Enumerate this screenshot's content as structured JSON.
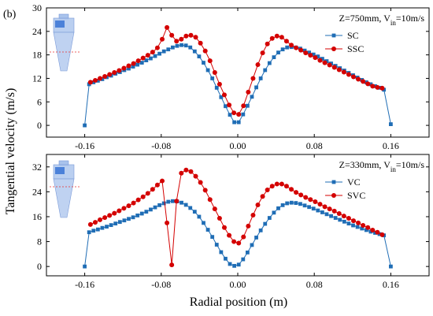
{
  "figure": {
    "panel_label": "(b)",
    "xlabel": "Radial position (m)",
    "ylabel": "Tangential velocity (m/s)"
  },
  "colors": {
    "blue": "#1f6db5",
    "red": "#d40000",
    "inset_fill": "#a9c3ec",
    "inset_dark": "#3f78d6"
  },
  "chart_data": [
    {
      "type": "line",
      "annotation": {
        "main": "Z=750mm, V",
        "sub": "in",
        "rest": "=10m/s"
      },
      "xlim": [
        -0.2,
        0.2
      ],
      "ylim": [
        -3,
        30
      ],
      "xticks": [
        -0.16,
        -0.08,
        0.0,
        0.08,
        0.16
      ],
      "xtick_labels": [
        "-0.16",
        "-0.08",
        "0.00",
        "0.08",
        "0.16"
      ],
      "yticks": [
        0,
        6,
        12,
        18,
        24,
        30
      ],
      "grid": false,
      "legend_position": "upper-right",
      "series": [
        {
          "name": "SC",
          "color": "#1f6db5",
          "marker": "square",
          "x": [
            -0.16,
            -0.1554,
            -0.1508,
            -0.1462,
            -0.1416,
            -0.137,
            -0.1324,
            -0.1278,
            -0.1232,
            -0.1186,
            -0.114,
            -0.1094,
            -0.1048,
            -0.1002,
            -0.0956,
            -0.091,
            -0.0864,
            -0.0818,
            -0.0772,
            -0.0726,
            -0.068,
            -0.0634,
            -0.0588,
            -0.0542,
            -0.0496,
            -0.045,
            -0.0404,
            -0.0358,
            -0.0312,
            -0.0266,
            -0.022,
            -0.0174,
            -0.0128,
            -0.0082,
            -0.0036,
            0.001,
            0.0056,
            0.0102,
            0.0148,
            0.0194,
            0.024,
            0.0286,
            0.0332,
            0.0378,
            0.0424,
            0.047,
            0.0516,
            0.0562,
            0.0608,
            0.0654,
            0.07,
            0.0746,
            0.0792,
            0.0838,
            0.0884,
            0.093,
            0.0976,
            0.1022,
            0.1068,
            0.1114,
            0.116,
            0.1206,
            0.1252,
            0.1298,
            0.1344,
            0.139,
            0.1436,
            0.1482,
            0.1528,
            0.16
          ],
          "y": [
            0,
            10.5,
            11.0,
            11.4,
            11.8,
            12.3,
            12.7,
            13.2,
            13.6,
            14.1,
            14.5,
            15.0,
            15.5,
            16.0,
            16.6,
            17.1,
            17.7,
            18.3,
            18.9,
            19.4,
            19.9,
            20.3,
            20.5,
            20.4,
            19.9,
            18.9,
            17.6,
            16.0,
            14.1,
            12.0,
            9.6,
            7.2,
            4.9,
            2.7,
            0.8,
            0.8,
            2.8,
            5.0,
            7.3,
            9.7,
            12.0,
            14.1,
            15.9,
            17.4,
            18.6,
            19.4,
            19.9,
            20.0,
            19.9,
            19.6,
            19.1,
            18.6,
            18.1,
            17.6,
            17.0,
            16.4,
            15.8,
            15.2,
            14.6,
            14.0,
            13.4,
            12.8,
            12.2,
            11.6,
            11.0,
            10.5,
            10.0,
            9.6,
            9.1,
            0.3
          ]
        },
        {
          "name": "SSC",
          "color": "#d40000",
          "marker": "circle",
          "x": [
            -0.154,
            -0.149,
            -0.144,
            -0.139,
            -0.134,
            -0.129,
            -0.124,
            -0.119,
            -0.114,
            -0.109,
            -0.104,
            -0.099,
            -0.094,
            -0.089,
            -0.084,
            -0.079,
            -0.074,
            -0.069,
            -0.064,
            -0.059,
            -0.054,
            -0.049,
            -0.044,
            -0.039,
            -0.034,
            -0.029,
            -0.024,
            -0.019,
            -0.014,
            -0.009,
            -0.004,
            0.001,
            0.006,
            0.011,
            0.016,
            0.021,
            0.026,
            0.031,
            0.036,
            0.041,
            0.046,
            0.051,
            0.056,
            0.061,
            0.066,
            0.071,
            0.076,
            0.081,
            0.086,
            0.091,
            0.096,
            0.101,
            0.106,
            0.111,
            0.116,
            0.121,
            0.126,
            0.131,
            0.136,
            0.141,
            0.146,
            0.151
          ],
          "y": [
            11.0,
            11.5,
            12.0,
            12.5,
            13.0,
            13.5,
            14.0,
            14.6,
            15.2,
            15.8,
            16.5,
            17.2,
            17.9,
            18.7,
            19.8,
            22.0,
            25.0,
            23.0,
            21.5,
            22.0,
            22.8,
            23.0,
            22.5,
            21.0,
            19.0,
            16.5,
            13.5,
            10.5,
            7.8,
            5.2,
            3.2,
            2.8,
            5.0,
            8.5,
            12.0,
            15.5,
            18.5,
            20.8,
            22.2,
            22.8,
            22.5,
            21.5,
            20.5,
            19.8,
            19.2,
            18.5,
            17.9,
            17.3,
            16.6,
            16.0,
            15.4,
            14.8,
            14.2,
            13.6,
            13.0,
            12.4,
            11.8,
            11.2,
            10.6,
            10.0,
            9.7,
            9.5
          ]
        }
      ]
    },
    {
      "type": "line",
      "annotation": {
        "main": "Z=330mm, V",
        "sub": "in",
        "rest": "=10m/s"
      },
      "xlim": [
        -0.2,
        0.2
      ],
      "ylim": [
        -3,
        36
      ],
      "xticks": [
        -0.16,
        -0.08,
        0.0,
        0.08,
        0.16
      ],
      "xtick_labels": [
        "-0.16",
        "-0.08",
        "0.00",
        "0.08",
        "0.16"
      ],
      "yticks": [
        0,
        8,
        16,
        24,
        32
      ],
      "grid": false,
      "legend_position": "upper-right",
      "series": [
        {
          "name": "VC",
          "color": "#1f6db5",
          "marker": "square",
          "x": [
            -0.16,
            -0.1554,
            -0.1508,
            -0.1462,
            -0.1416,
            -0.137,
            -0.1324,
            -0.1278,
            -0.1232,
            -0.1186,
            -0.114,
            -0.1094,
            -0.1048,
            -0.1002,
            -0.0956,
            -0.091,
            -0.0864,
            -0.0818,
            -0.0772,
            -0.0726,
            -0.068,
            -0.0634,
            -0.0588,
            -0.0542,
            -0.0496,
            -0.045,
            -0.0404,
            -0.0358,
            -0.0312,
            -0.0266,
            -0.022,
            -0.0174,
            -0.0128,
            -0.0082,
            -0.0036,
            0.001,
            0.0056,
            0.0102,
            0.0148,
            0.0194,
            0.024,
            0.0286,
            0.0332,
            0.0378,
            0.0424,
            0.047,
            0.0516,
            0.0562,
            0.0608,
            0.0654,
            0.07,
            0.0746,
            0.0792,
            0.0838,
            0.0884,
            0.093,
            0.0976,
            0.1022,
            0.1068,
            0.1114,
            0.116,
            0.1206,
            0.1252,
            0.1298,
            0.1344,
            0.139,
            0.1436,
            0.1482,
            0.1528,
            0.16
          ],
          "y": [
            0,
            11.0,
            11.5,
            11.9,
            12.4,
            12.8,
            13.3,
            13.8,
            14.3,
            14.8,
            15.3,
            15.8,
            16.4,
            17.0,
            17.6,
            18.3,
            19.0,
            19.7,
            20.3,
            20.8,
            21.0,
            20.9,
            20.5,
            19.8,
            18.8,
            17.6,
            16.0,
            14.0,
            11.8,
            9.5,
            7.0,
            4.6,
            2.5,
            0.8,
            0.2,
            0.6,
            2.3,
            4.5,
            6.9,
            9.3,
            11.6,
            13.7,
            15.6,
            17.3,
            18.7,
            19.7,
            20.3,
            20.5,
            20.4,
            20.1,
            19.6,
            19.1,
            18.6,
            18.0,
            17.4,
            16.8,
            16.2,
            15.6,
            15.0,
            14.4,
            13.8,
            13.2,
            12.7,
            12.2,
            11.7,
            11.2,
            10.8,
            10.4,
            10.0,
            0
          ]
        },
        {
          "name": "SVC",
          "color": "#d40000",
          "marker": "circle",
          "x": [
            -0.154,
            -0.149,
            -0.144,
            -0.139,
            -0.134,
            -0.129,
            -0.124,
            -0.119,
            -0.114,
            -0.109,
            -0.104,
            -0.099,
            -0.094,
            -0.089,
            -0.084,
            -0.079,
            -0.074,
            -0.069,
            -0.064,
            -0.059,
            -0.054,
            -0.049,
            -0.044,
            -0.039,
            -0.034,
            -0.029,
            -0.024,
            -0.019,
            -0.014,
            -0.009,
            -0.004,
            0.001,
            0.006,
            0.011,
            0.016,
            0.021,
            0.026,
            0.031,
            0.036,
            0.041,
            0.046,
            0.051,
            0.056,
            0.061,
            0.066,
            0.071,
            0.076,
            0.081,
            0.086,
            0.091,
            0.096,
            0.101,
            0.106,
            0.111,
            0.116,
            0.121,
            0.126,
            0.131,
            0.136,
            0.141,
            0.146,
            0.151
          ],
          "y": [
            13.5,
            14.2,
            15.0,
            15.7,
            16.4,
            17.1,
            17.9,
            18.7,
            19.5,
            20.4,
            21.4,
            22.4,
            23.5,
            24.8,
            26.2,
            27.5,
            14.0,
            0.5,
            21.0,
            30.0,
            31.0,
            30.5,
            29.0,
            27.0,
            24.5,
            21.5,
            18.5,
            15.5,
            12.5,
            10.0,
            8.0,
            7.5,
            9.5,
            13.0,
            16.5,
            19.8,
            22.5,
            24.6,
            25.8,
            26.5,
            26.5,
            25.8,
            24.8,
            23.8,
            23.0,
            22.2,
            21.5,
            20.8,
            20.0,
            19.2,
            18.5,
            17.8,
            17.0,
            16.2,
            15.5,
            14.7,
            14.0,
            13.2,
            12.5,
            11.7,
            11.0,
            10.2
          ]
        }
      ]
    }
  ]
}
